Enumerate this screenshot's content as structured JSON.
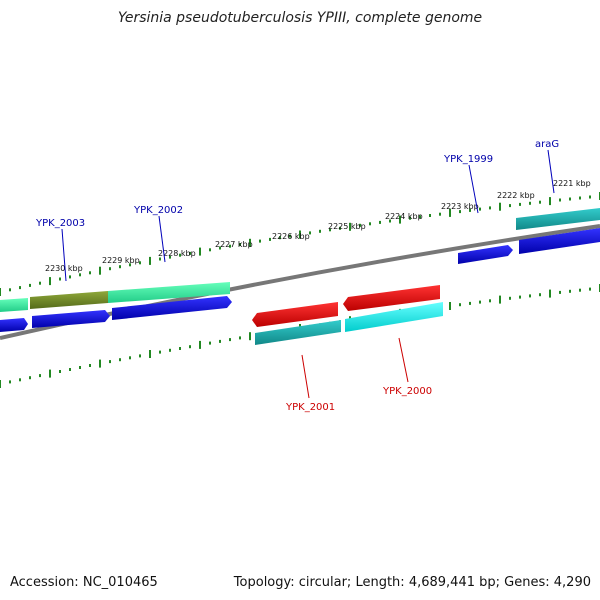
{
  "title": "Yersinia pseudotuberculosis YPIII, complete genome",
  "footer": {
    "accession_label": "Accession:",
    "accession": "NC_010465",
    "topology_label": "Topology:",
    "topology": "circular",
    "length_label": "Length:",
    "length": "4,689,441 bp",
    "genes_label": "Genes:",
    "genes": "4,290"
  },
  "scale_labels": [
    "2221 kbp",
    "2222 kbp",
    "2223 kbp",
    "2224 kbp",
    "2225 kbp",
    "2226 kbp",
    "2227 kbp",
    "2228 kbp",
    "2229 kbp",
    "2230 kbp"
  ],
  "gene_labels": {
    "ypk_2003": "YPK_2003",
    "ypk_2002": "YPK_2002",
    "ypk_1999": "YPK_1999",
    "arag": "araG",
    "ypk_2001": "YPK_2001",
    "ypk_2000": "YPK_2000"
  },
  "colors": {
    "forward_gene": "#0000dd",
    "reverse_gene": "#dd0000",
    "forward_cds": "#33ee99",
    "cds_olive": "#6b8e23",
    "cds_teal": "#11aaaa",
    "cds_cyan": "#00eeee",
    "backbone": "#888888",
    "tick": "#228822",
    "label_blue": "#0000aa",
    "label_red": "#cc0000"
  }
}
